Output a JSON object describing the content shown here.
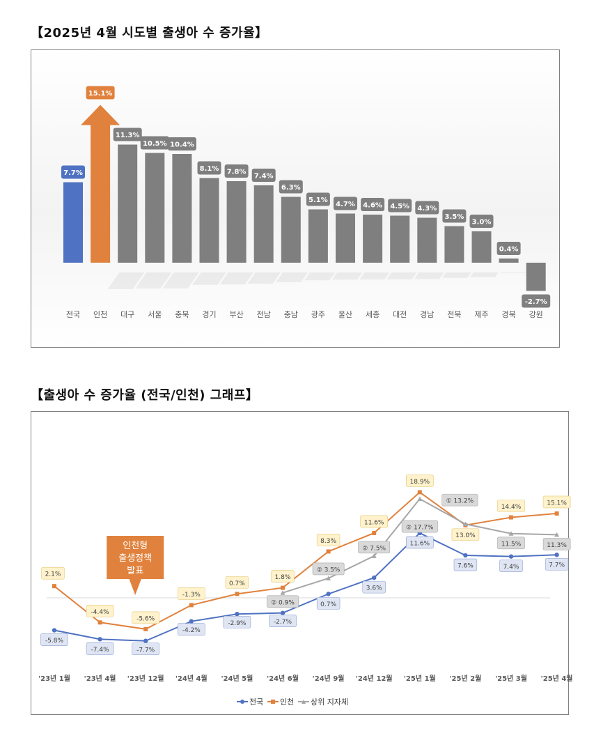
{
  "headings": {
    "chart1": "【2025년 4월 시도별 출생아 수 증가율】",
    "chart2": "【출생아 수 증가율 (전국/인천) 그래프】"
  },
  "colors": {
    "national": "#4f72c2",
    "incheon": "#e0823d",
    "other": "#7f7f7f",
    "top": "#a6a6a6"
  },
  "chart_data": [
    {
      "type": "bar",
      "categories": [
        "전국",
        "인천",
        "대구",
        "서울",
        "충북",
        "경기",
        "부산",
        "전남",
        "충남",
        "광주",
        "울산",
        "세종",
        "대전",
        "경남",
        "전북",
        "제주",
        "경북",
        "강원"
      ],
      "values": [
        7.7,
        15.1,
        11.3,
        10.5,
        10.4,
        8.1,
        7.8,
        7.4,
        6.3,
        5.1,
        4.7,
        4.6,
        4.5,
        4.3,
        3.5,
        3.0,
        0.4,
        -2.7
      ],
      "data_labels": [
        "7.7%",
        "15.1%",
        "11.3%",
        "10.5%",
        "10.4%",
        "8.1%",
        "7.8%",
        "7.4%",
        "6.3%",
        "5.1%",
        "4.7%",
        "4.6%",
        "4.5%",
        "4.3%",
        "3.5%",
        "3.0%",
        "0.4%",
        "-2.7%"
      ],
      "unit": "%",
      "ylim": [
        -3,
        17
      ],
      "grid": false,
      "highlight": {
        "전국": "national",
        "인천": "incheon"
      }
    },
    {
      "type": "line",
      "categories": [
        "'23년 1월",
        "'23년 4월",
        "'23년 12월",
        "'24년 4월",
        "'24년 5월",
        "'24년 6월",
        "'24년 9월",
        "'24년 12월",
        "'25년 1월",
        "'25년 2월",
        "'25년 3월",
        "'25년 4월"
      ],
      "series": [
        {
          "name": "전국",
          "color_key": "national",
          "values": [
            -5.8,
            -7.4,
            -7.7,
            -4.2,
            -2.9,
            -2.7,
            0.7,
            3.6,
            11.6,
            7.6,
            7.4,
            7.7
          ],
          "labels": [
            "-5.8%",
            "-7.4%",
            "-7.7%",
            "-4.2%",
            "-2.9%",
            "-2.7%",
            "0.7%",
            "3.6%",
            "11.6%",
            "7.6%",
            "7.4%",
            "7.7%"
          ]
        },
        {
          "name": "인천",
          "color_key": "incheon",
          "values": [
            2.1,
            -4.4,
            -5.6,
            -1.3,
            0.7,
            1.8,
            8.3,
            11.6,
            18.9,
            13.0,
            14.4,
            15.1
          ],
          "labels": [
            "2.1%",
            "-4.4%",
            "-5.6%",
            "-1.3%",
            "0.7%",
            "1.8%",
            "8.3%",
            "11.6%",
            "18.9%",
            "13.0%",
            "14.4%",
            "15.1%"
          ]
        },
        {
          "name": "상위 지자체",
          "color_key": "top",
          "values": [
            null,
            null,
            null,
            null,
            null,
            0.9,
            3.5,
            7.5,
            17.7,
            13.2,
            11.5,
            11.3
          ],
          "labels": [
            "",
            "",
            "",
            "",
            "",
            "② 0.9%",
            "② 3.5%",
            "② 7.5%",
            "② 17.7%",
            "① 13.2%",
            "11.5%",
            "11.3%"
          ]
        }
      ],
      "ylim": [
        -10,
        21
      ],
      "baseline": 0,
      "legend_position": "bottom",
      "callout": "인천형\n출생정책\n발표",
      "callout_index": 2
    }
  ]
}
